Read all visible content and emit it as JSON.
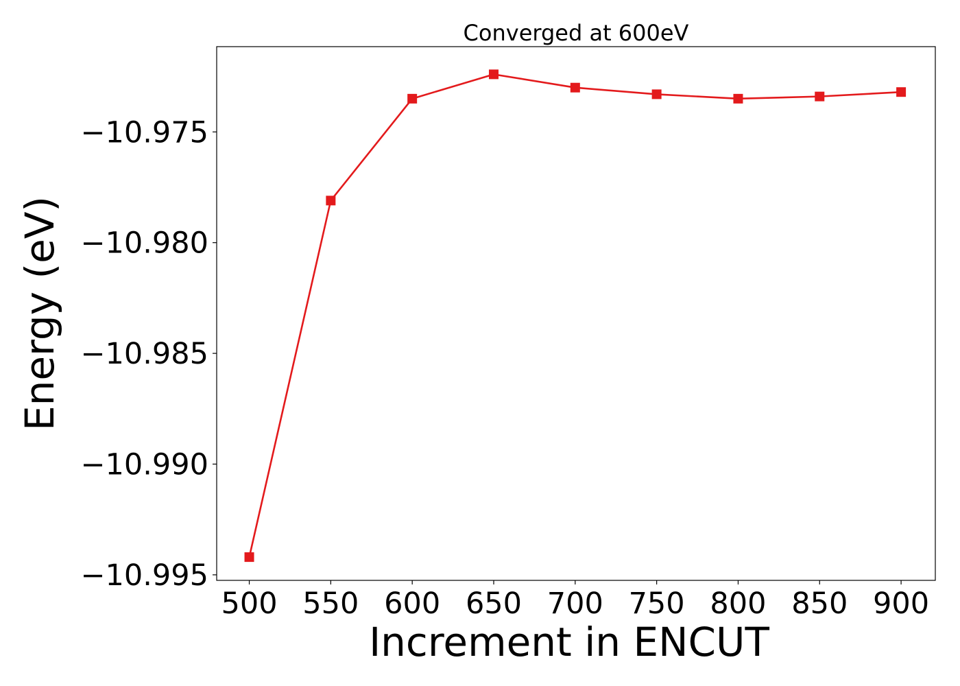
{
  "chart_data": {
    "type": "line",
    "title": "Converged at 600eV",
    "xlabel": "Increment in ENCUT",
    "ylabel": "Energy (eV)",
    "x": [
      500,
      550,
      600,
      650,
      700,
      750,
      800,
      850,
      900
    ],
    "series": [
      {
        "values": [
          -10.9942,
          -10.9781,
          -10.9735,
          -10.9724,
          -10.973,
          -10.9733,
          -10.9735,
          -10.9734,
          -10.9732
        ],
        "color": "#e31a1c",
        "marker": "square"
      }
    ],
    "xlim": [
      480,
      921
    ],
    "ylim": [
      -10.99525,
      -10.97115
    ],
    "xticks": [
      {
        "value": 500,
        "label": "500"
      },
      {
        "value": 550,
        "label": "550"
      },
      {
        "value": 600,
        "label": "600"
      },
      {
        "value": 650,
        "label": "650"
      },
      {
        "value": 700,
        "label": "700"
      },
      {
        "value": 750,
        "label": "750"
      },
      {
        "value": 800,
        "label": "800"
      },
      {
        "value": 850,
        "label": "850"
      },
      {
        "value": 900,
        "label": "900"
      }
    ],
    "yticks": [
      {
        "value": -10.975,
        "label": "−10.975"
      },
      {
        "value": -10.98,
        "label": "−10.980"
      },
      {
        "value": -10.985,
        "label": "−10.985"
      },
      {
        "value": -10.99,
        "label": "−10.990"
      },
      {
        "value": -10.995,
        "label": "−10.995"
      }
    ],
    "grid": false,
    "legend": "none"
  }
}
